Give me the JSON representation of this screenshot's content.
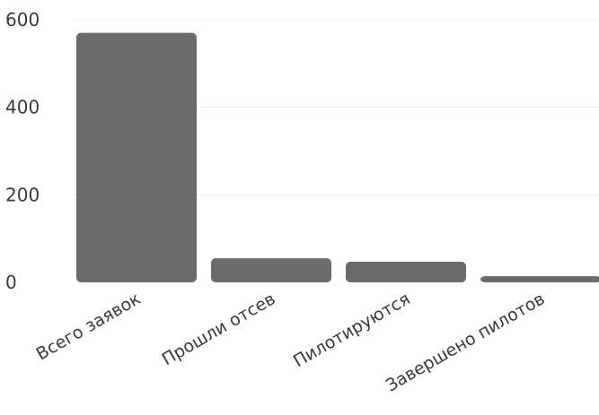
{
  "chart_data": {
    "type": "bar",
    "title": "",
    "xlabel": "",
    "ylabel": "",
    "categories": [
      "Всего заявок",
      "Прошли отсев",
      "Пилотируются",
      "Завершено пилотов"
    ],
    "values": [
      570,
      55,
      47,
      14
    ],
    "ylim": [
      0,
      600
    ],
    "yticks": [
      0,
      200,
      400,
      600
    ],
    "ytick_labels": [
      "0",
      "200",
      "400",
      "600"
    ],
    "grid": true,
    "legend": "none",
    "bar_color": "#6b6b6b",
    "grid_color": "#ededed",
    "text_color": "#3a3a3a"
  }
}
